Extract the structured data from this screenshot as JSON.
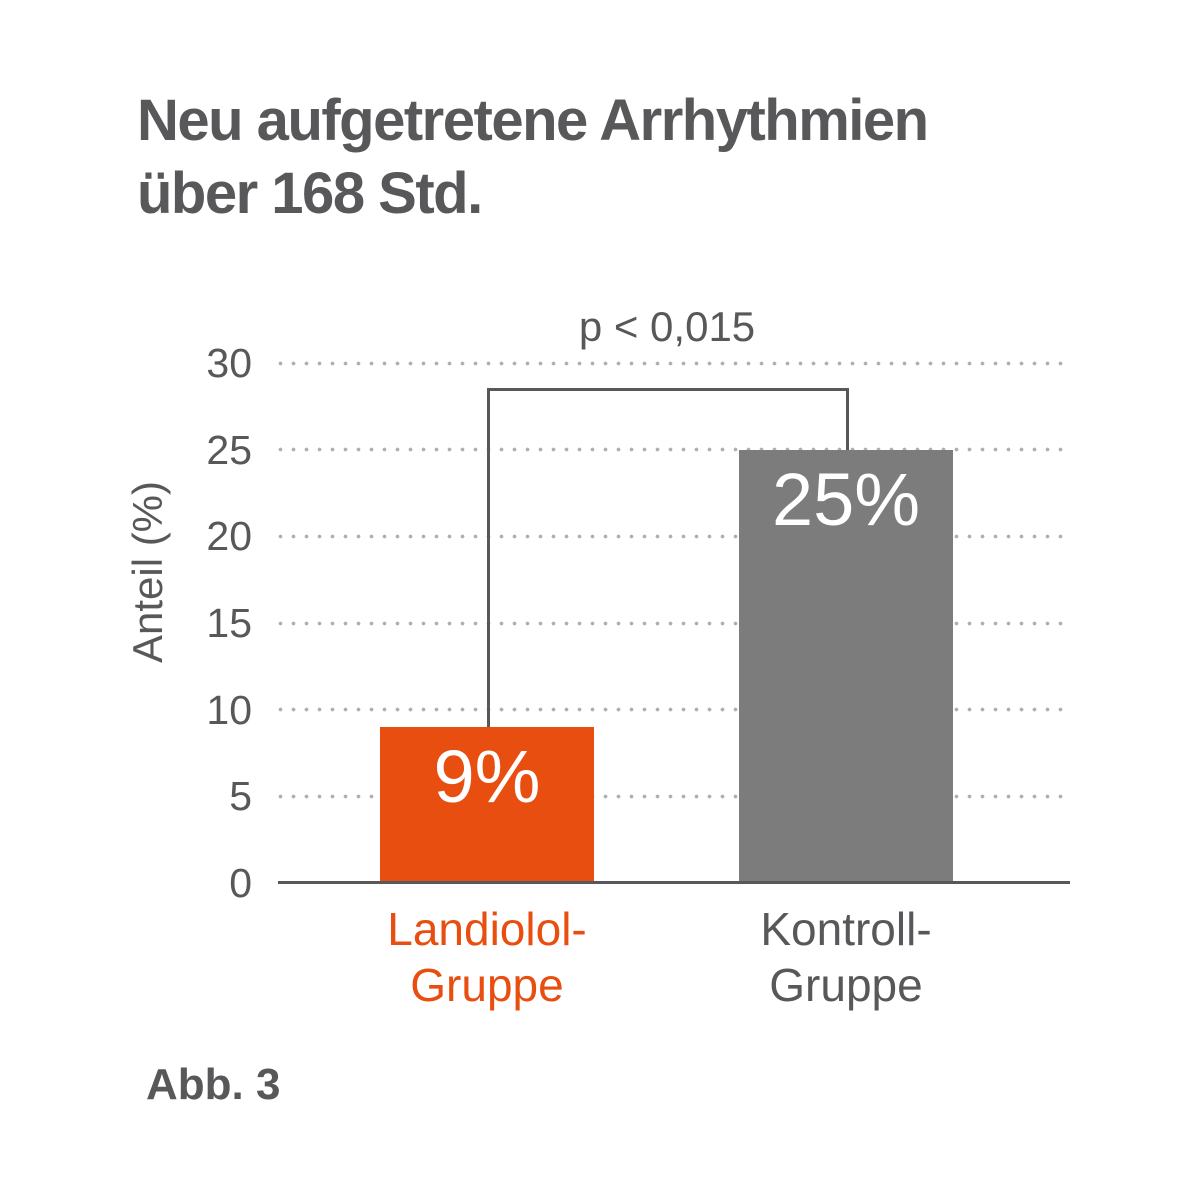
{
  "figure": {
    "title_lines": [
      "Neu aufgetretene Arrhythmien",
      "über 168 Std."
    ],
    "caption": "Abb. 3"
  },
  "colors": {
    "accent_orange": "#E84E0F",
    "bar_gray": "#7C7C7C",
    "text_gray": "#58585A",
    "grid_dot": "#AFAFAF",
    "value_text": "#FFFFFF",
    "background": "#FFFFFF"
  },
  "chart_data": {
    "type": "bar",
    "title": "Neu aufgetretene Arrhythmien über 168 Std.",
    "ylabel": "Anteil (%)",
    "ylim": [
      0,
      30
    ],
    "yticks": [
      0,
      5,
      10,
      15,
      20,
      25,
      30
    ],
    "grid": "horizontal-dotted",
    "legend": "none",
    "categories": [
      "Landiolol-Gruppe",
      "Kontroll-Gruppe"
    ],
    "category_lines": [
      [
        "Landiolol-",
        "Gruppe"
      ],
      [
        "Kontroll-",
        "Gruppe"
      ]
    ],
    "values": [
      9,
      25
    ],
    "value_labels": [
      "9%",
      "25%"
    ],
    "bar_colors": [
      "#E84E0F",
      "#7C7C7C"
    ],
    "category_label_colors": [
      "#E84E0F",
      "#58585A"
    ],
    "annotation": {
      "text": "p < 0,015",
      "between": [
        "Landiolol-Gruppe",
        "Kontroll-Gruppe"
      ]
    }
  }
}
